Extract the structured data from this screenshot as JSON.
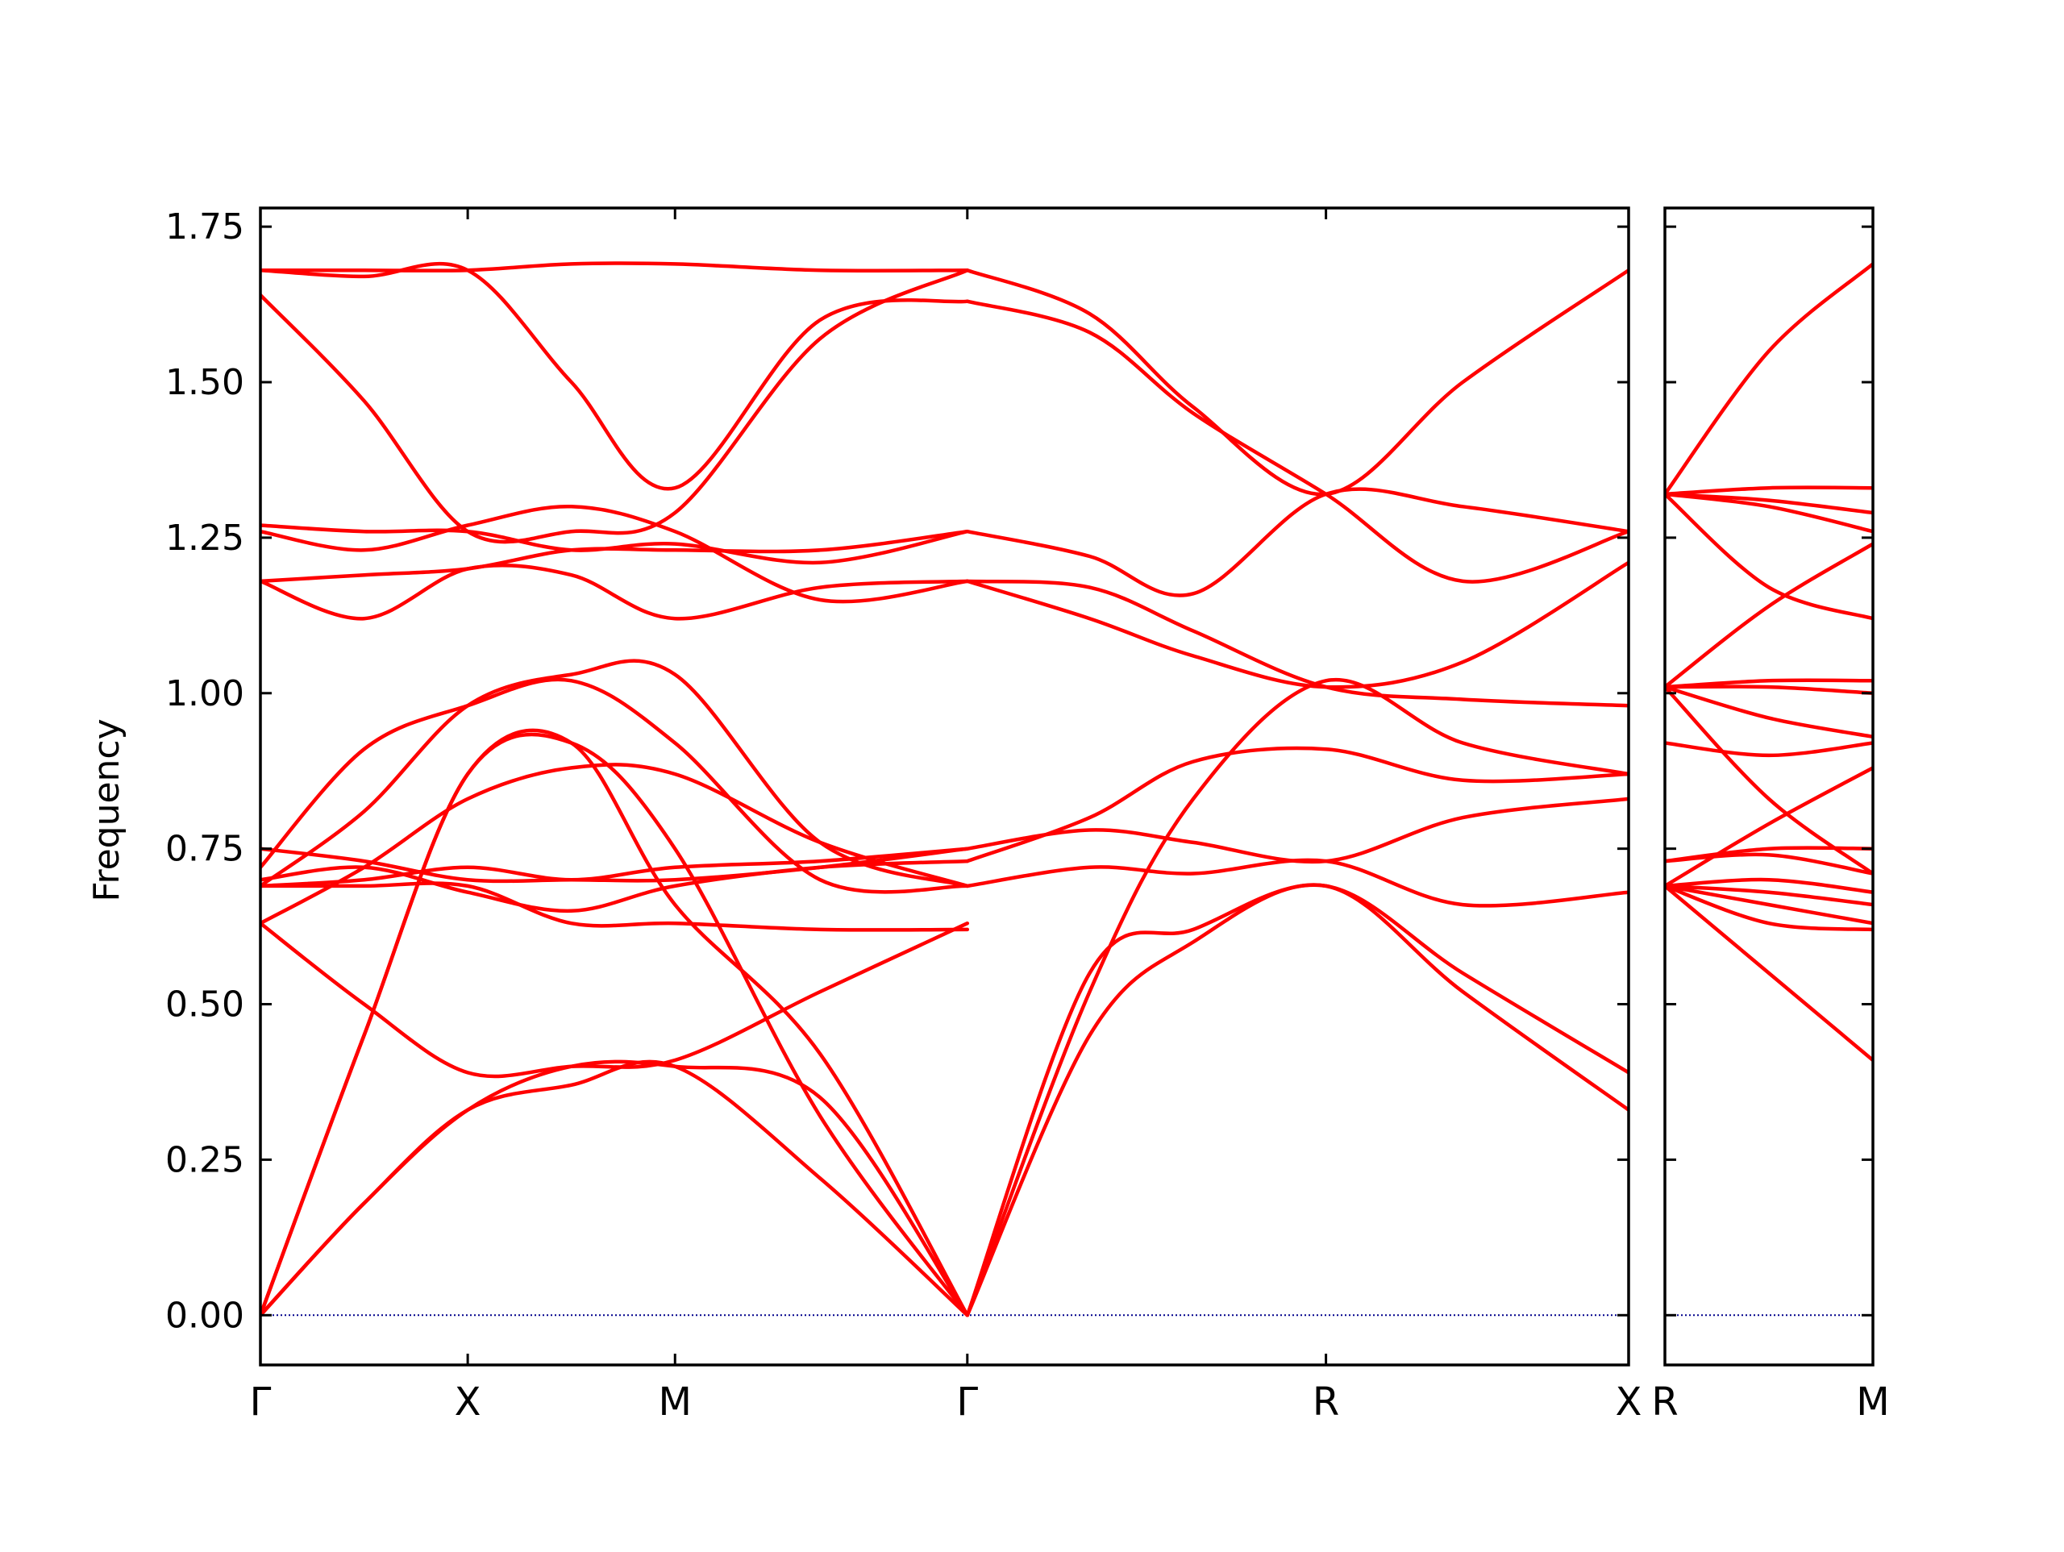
{
  "chart_data": {
    "type": "line",
    "ylabel": "Frequency",
    "ylim": [
      -0.08,
      1.78
    ],
    "yticks": [
      0.0,
      0.25,
      0.5,
      0.75,
      1.0,
      1.25,
      1.5,
      1.75
    ],
    "ytick_labels": [
      "0.00",
      "0.25",
      "0.50",
      "0.75",
      "1.00",
      "1.25",
      "1.50",
      "1.75"
    ],
    "line_color": "#ff0000",
    "zero_line_color": "#00008b",
    "panels": [
      {
        "name": "main",
        "x_range": [
          0,
          6.6
        ],
        "xticks": [
          0,
          1,
          2,
          3.41,
          5.14,
          6.6
        ],
        "xtick_labels": [
          "Γ",
          "X",
          "M",
          "Γ",
          "R",
          "X"
        ],
        "bands": [
          {
            "x": [
              0,
              0.5,
              1,
              1.5,
              2,
              2.7,
              3.41
            ],
            "y": [
              0.0,
              0.18,
              0.33,
              0.37,
              0.4,
              0.22,
              0.0
            ]
          },
          {
            "x": [
              0,
              0.5,
              1,
              1.5,
              2,
              2.7,
              3.41
            ],
            "y": [
              0.0,
              0.18,
              0.33,
              0.4,
              0.4,
              0.35,
              0.0
            ]
          },
          {
            "x": [
              0,
              0.5,
              1,
              1.5,
              2,
              2.7,
              3.41
            ],
            "y": [
              0.0,
              0.45,
              0.87,
              0.92,
              0.75,
              0.32,
              0.0
            ]
          },
          {
            "x": [
              0,
              0.5,
              1,
              1.5,
              2,
              2.7,
              3.41
            ],
            "y": [
              0.0,
              0.45,
              0.87,
              0.92,
              0.66,
              0.42,
              0.0
            ]
          },
          {
            "x": [
              3.41,
              4.0,
              4.5,
              5.14,
              5.8,
              6.6
            ],
            "y": [
              0.0,
              0.45,
              0.6,
              0.69,
              0.52,
              0.33
            ]
          },
          {
            "x": [
              3.41,
              4.0,
              4.5,
              5.14,
              5.8,
              6.6
            ],
            "y": [
              0.0,
              0.55,
              0.62,
              0.69,
              0.55,
              0.39
            ]
          },
          {
            "x": [
              3.41,
              4.0,
              4.5,
              5.14,
              5.8,
              6.6
            ],
            "y": [
              0.0,
              0.52,
              0.83,
              1.02,
              0.92,
              0.87
            ]
          },
          {
            "x": [
              0,
              0.5,
              1,
              1.5,
              2,
              2.7,
              3.41
            ],
            "y": [
              0.63,
              0.5,
              0.39,
              0.4,
              0.41,
              0.52,
              0.63
            ]
          },
          {
            "x": [
              0,
              0.5,
              1,
              1.5,
              2,
              2.7,
              3.41
            ],
            "y": [
              0.63,
              0.72,
              0.83,
              0.88,
              0.87,
              0.76,
              0.69
            ]
          },
          {
            "x": [
              0,
              0.5,
              1,
              1.5,
              2,
              2.7,
              3.41
            ],
            "y": [
              0.69,
              0.69,
              0.69,
              0.63,
              0.63,
              0.62,
              0.62
            ]
          },
          {
            "x": [
              0,
              0.5,
              1,
              1.5,
              2,
              2.7,
              3.41
            ],
            "y": [
              0.69,
              0.7,
              0.72,
              0.7,
              0.72,
              0.73,
              0.75
            ]
          },
          {
            "x": [
              0,
              0.5,
              1,
              1.5,
              2,
              2.7,
              3.41
            ],
            "y": [
              0.7,
              0.72,
              0.68,
              0.65,
              0.69,
              0.72,
              0.73
            ]
          },
          {
            "x": [
              0,
              0.5,
              1,
              1.5,
              2,
              2.7,
              3.41
            ],
            "y": [
              0.75,
              0.73,
              0.7,
              0.7,
              0.7,
              0.72,
              0.75
            ]
          },
          {
            "x": [
              0,
              0.5,
              1,
              1.5,
              2,
              2.7,
              3.41
            ],
            "y": [
              0.72,
              0.91,
              0.98,
              1.02,
              0.92,
              0.7,
              0.69
            ]
          },
          {
            "x": [
              0,
              0.5,
              1,
              1.5,
              2,
              2.7,
              3.41
            ],
            "y": [
              0.69,
              0.81,
              0.98,
              1.03,
              1.03,
              0.76,
              0.69
            ]
          },
          {
            "x": [
              0,
              0.5,
              1,
              1.5,
              2,
              2.7,
              3.41
            ],
            "y": [
              1.18,
              1.12,
              1.2,
              1.19,
              1.12,
              1.17,
              1.18
            ]
          },
          {
            "x": [
              0,
              0.5,
              1,
              1.5,
              2,
              2.7,
              3.41
            ],
            "y": [
              1.18,
              1.19,
              1.2,
              1.23,
              1.23,
              1.23,
              1.26
            ]
          },
          {
            "x": [
              0,
              0.5,
              1,
              1.5,
              2,
              2.7,
              3.41
            ],
            "y": [
              1.26,
              1.23,
              1.27,
              1.3,
              1.26,
              1.15,
              1.18
            ]
          },
          {
            "x": [
              0,
              0.5,
              1,
              1.5,
              2,
              2.7,
              3.41
            ],
            "y": [
              1.27,
              1.26,
              1.26,
              1.23,
              1.24,
              1.21,
              1.26
            ]
          },
          {
            "x": [
              0,
              0.5,
              1,
              1.5,
              2,
              2.7,
              3.41
            ],
            "y": [
              1.64,
              1.47,
              1.26,
              1.26,
              1.29,
              1.57,
              1.68
            ]
          },
          {
            "x": [
              0,
              0.5,
              1,
              1.5,
              2,
              2.7,
              3.41
            ],
            "y": [
              1.68,
              1.67,
              1.68,
              1.5,
              1.33,
              1.6,
              1.63
            ]
          },
          {
            "x": [
              0,
              0.5,
              1,
              1.5,
              2,
              2.7,
              3.41
            ],
            "y": [
              1.68,
              1.68,
              1.68,
              1.69,
              1.69,
              1.68,
              1.68
            ]
          },
          {
            "x": [
              3.41,
              4.0,
              4.5,
              5.14,
              5.8,
              6.6
            ],
            "y": [
              1.68,
              1.61,
              1.46,
              1.32,
              1.5,
              1.68
            ]
          },
          {
            "x": [
              3.41,
              4.0,
              4.5,
              5.14,
              5.8,
              6.6
            ],
            "y": [
              1.63,
              1.58,
              1.45,
              1.32,
              1.18,
              1.26
            ]
          },
          {
            "x": [
              3.41,
              4.0,
              4.5,
              5.14,
              5.8,
              6.6
            ],
            "y": [
              1.26,
              1.22,
              1.16,
              1.32,
              1.3,
              1.26
            ]
          },
          {
            "x": [
              3.41,
              4.0,
              4.5,
              5.14,
              5.8,
              6.6
            ],
            "y": [
              1.18,
              1.12,
              1.06,
              1.01,
              1.05,
              1.21
            ]
          },
          {
            "x": [
              3.41,
              4.0,
              4.5,
              5.14,
              5.8,
              6.6
            ],
            "y": [
              1.18,
              1.17,
              1.1,
              1.01,
              0.99,
              0.98
            ]
          },
          {
            "x": [
              3.41,
              4.0,
              4.5,
              5.14,
              5.8,
              6.6
            ],
            "y": [
              0.75,
              0.78,
              0.76,
              0.73,
              0.8,
              0.83
            ]
          },
          {
            "x": [
              3.41,
              4.0,
              4.5,
              5.14,
              5.8,
              6.6
            ],
            "y": [
              0.69,
              0.72,
              0.71,
              0.73,
              0.66,
              0.68
            ]
          },
          {
            "x": [
              3.41,
              4.0,
              4.5,
              5.14,
              5.8,
              6.6
            ],
            "y": [
              0.73,
              0.8,
              0.89,
              0.91,
              0.86,
              0.87
            ]
          }
        ]
      },
      {
        "name": "right",
        "x_range": [
          0,
          1
        ],
        "xticks": [
          0,
          1
        ],
        "xtick_labels": [
          "R",
          "M"
        ],
        "bands": [
          {
            "x": [
              0,
              0.5,
              1
            ],
            "y": [
              0.69,
              0.55,
              0.41
            ]
          },
          {
            "x": [
              0,
              0.5,
              1
            ],
            "y": [
              0.69,
              0.63,
              0.62
            ]
          },
          {
            "x": [
              0,
              0.5,
              1
            ],
            "y": [
              0.69,
              0.66,
              0.63
            ]
          },
          {
            "x": [
              0,
              0.5,
              1
            ],
            "y": [
              0.69,
              0.68,
              0.66
            ]
          },
          {
            "x": [
              0,
              0.5,
              1
            ],
            "y": [
              0.69,
              0.7,
              0.68
            ]
          },
          {
            "x": [
              0,
              0.5,
              1
            ],
            "y": [
              0.73,
              0.74,
              0.71
            ]
          },
          {
            "x": [
              0,
              0.5,
              1
            ],
            "y": [
              0.73,
              0.75,
              0.75
            ]
          },
          {
            "x": [
              0,
              0.5,
              1
            ],
            "y": [
              0.69,
              0.79,
              0.88
            ]
          },
          {
            "x": [
              0,
              0.5,
              1
            ],
            "y": [
              0.92,
              0.9,
              0.92
            ]
          },
          {
            "x": [
              0,
              0.5,
              1
            ],
            "y": [
              1.01,
              0.96,
              0.93
            ]
          },
          {
            "x": [
              0,
              0.5,
              1
            ],
            "y": [
              1.01,
              1.01,
              1.0
            ]
          },
          {
            "x": [
              0,
              0.5,
              1
            ],
            "y": [
              1.01,
              1.02,
              1.02
            ]
          },
          {
            "x": [
              0,
              0.5,
              1
            ],
            "y": [
              1.01,
              0.83,
              0.71
            ]
          },
          {
            "x": [
              0,
              0.5,
              1
            ],
            "y": [
              1.01,
              1.14,
              1.24
            ]
          },
          {
            "x": [
              0,
              0.5,
              1
            ],
            "y": [
              1.32,
              1.17,
              1.12
            ]
          },
          {
            "x": [
              0,
              0.5,
              1
            ],
            "y": [
              1.32,
              1.3,
              1.26
            ]
          },
          {
            "x": [
              0,
              0.5,
              1
            ],
            "y": [
              1.32,
              1.31,
              1.29
            ]
          },
          {
            "x": [
              0,
              0.5,
              1
            ],
            "y": [
              1.32,
              1.33,
              1.33
            ]
          },
          {
            "x": [
              0,
              0.5,
              1
            ],
            "y": [
              1.32,
              1.55,
              1.69
            ]
          }
        ]
      }
    ]
  }
}
